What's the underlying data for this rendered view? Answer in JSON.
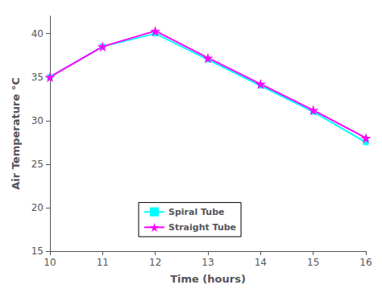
{
  "chart_data": {
    "type": "line",
    "xlabel": "Time (hours)",
    "ylabel": "Air Temperature °C",
    "x": [
      10,
      11,
      12,
      13,
      14,
      15,
      16
    ],
    "series": [
      {
        "name": "Spiral Tube",
        "color": "#00FFFF",
        "marker": "square",
        "values": [
          35,
          38.5,
          40,
          37,
          34,
          31,
          27.5
        ]
      },
      {
        "name": "Straight Tube",
        "color": "#FF00FF",
        "marker": "star",
        "values": [
          35,
          38.5,
          40.3,
          37.2,
          34.2,
          31.2,
          28
        ]
      }
    ],
    "xlim": [
      10,
      16
    ],
    "ylim": [
      15,
      42
    ],
    "xticks": [
      10,
      11,
      12,
      13,
      14,
      15,
      16
    ],
    "yticks": [
      15,
      20,
      25,
      30,
      35,
      40
    ],
    "grid": false,
    "legend": "lower left"
  }
}
